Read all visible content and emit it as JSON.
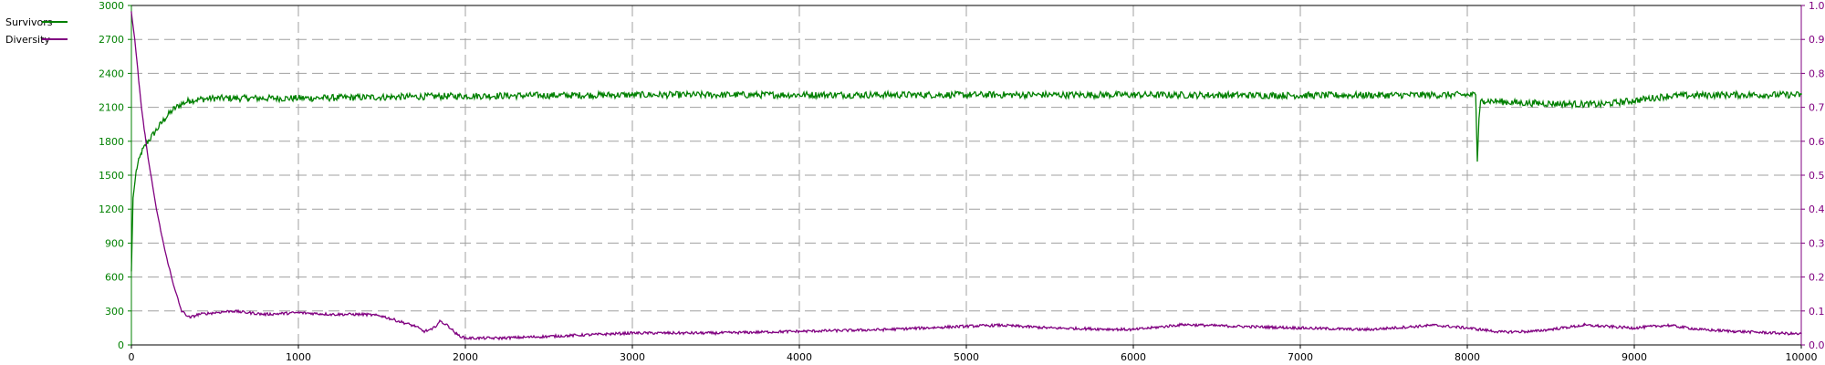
{
  "chart_data": {
    "type": "line",
    "x_ticks": [
      "0",
      "1000",
      "2000",
      "3000",
      "4000",
      "5000",
      "6000",
      "7000",
      "8000",
      "9000",
      "10000"
    ],
    "xlim": [
      0,
      10000
    ],
    "y_left_ticks": [
      "0",
      "300",
      "600",
      "900",
      "1200",
      "1500",
      "1800",
      "2100",
      "2400",
      "2700",
      "3000"
    ],
    "ylim_left": [
      0,
      3000
    ],
    "y_right_ticks": [
      "0.00",
      "0.10",
      "0.20",
      "0.30",
      "0.40",
      "0.50",
      "0.60",
      "0.70",
      "0.80",
      "0.90",
      "1.00"
    ],
    "ylim_right": [
      0,
      1
    ],
    "grid": true,
    "legend_position": "top-left",
    "series": [
      {
        "name": "Survivors",
        "axis": "left",
        "color": "#008000",
        "noise": 30,
        "x": [
          0,
          10,
          30,
          60,
          100,
          150,
          200,
          250,
          300,
          350,
          400,
          500,
          700,
          1000,
          1500,
          2000,
          3000,
          4000,
          5000,
          6000,
          7000,
          8000,
          8050,
          8060,
          8070,
          8080,
          8100,
          8300,
          8600,
          8800,
          9000,
          9200,
          9500,
          10000
        ],
        "y": [
          650,
          1300,
          1550,
          1700,
          1800,
          1900,
          2000,
          2080,
          2130,
          2160,
          2170,
          2180,
          2180,
          2180,
          2190,
          2200,
          2210,
          2210,
          2210,
          2210,
          2205,
          2210,
          2210,
          1620,
          2000,
          2160,
          2160,
          2140,
          2130,
          2125,
          2160,
          2200,
          2210,
          2210
        ]
      },
      {
        "name": "Diversity",
        "axis": "right",
        "color": "#800080",
        "noise": 0.004,
        "x": [
          0,
          20,
          60,
          100,
          150,
          200,
          250,
          300,
          350,
          400,
          600,
          800,
          1000,
          1200,
          1400,
          1500,
          1600,
          1700,
          1750,
          1800,
          1850,
          1900,
          1950,
          2000,
          2200,
          2500,
          3000,
          3500,
          4000,
          4500,
          5000,
          5200,
          5500,
          6000,
          6300,
          6600,
          7000,
          7400,
          7800,
          8000,
          8200,
          8400,
          8700,
          9000,
          9200,
          9400,
          9600,
          10000
        ],
        "y": [
          0.98,
          0.9,
          0.7,
          0.55,
          0.4,
          0.28,
          0.18,
          0.1,
          0.08,
          0.09,
          0.1,
          0.09,
          0.095,
          0.09,
          0.09,
          0.085,
          0.07,
          0.055,
          0.04,
          0.045,
          0.07,
          0.055,
          0.03,
          0.02,
          0.02,
          0.025,
          0.035,
          0.035,
          0.04,
          0.045,
          0.055,
          0.058,
          0.05,
          0.045,
          0.06,
          0.055,
          0.05,
          0.045,
          0.058,
          0.05,
          0.038,
          0.04,
          0.058,
          0.05,
          0.058,
          0.045,
          0.04,
          0.032
        ]
      }
    ]
  }
}
